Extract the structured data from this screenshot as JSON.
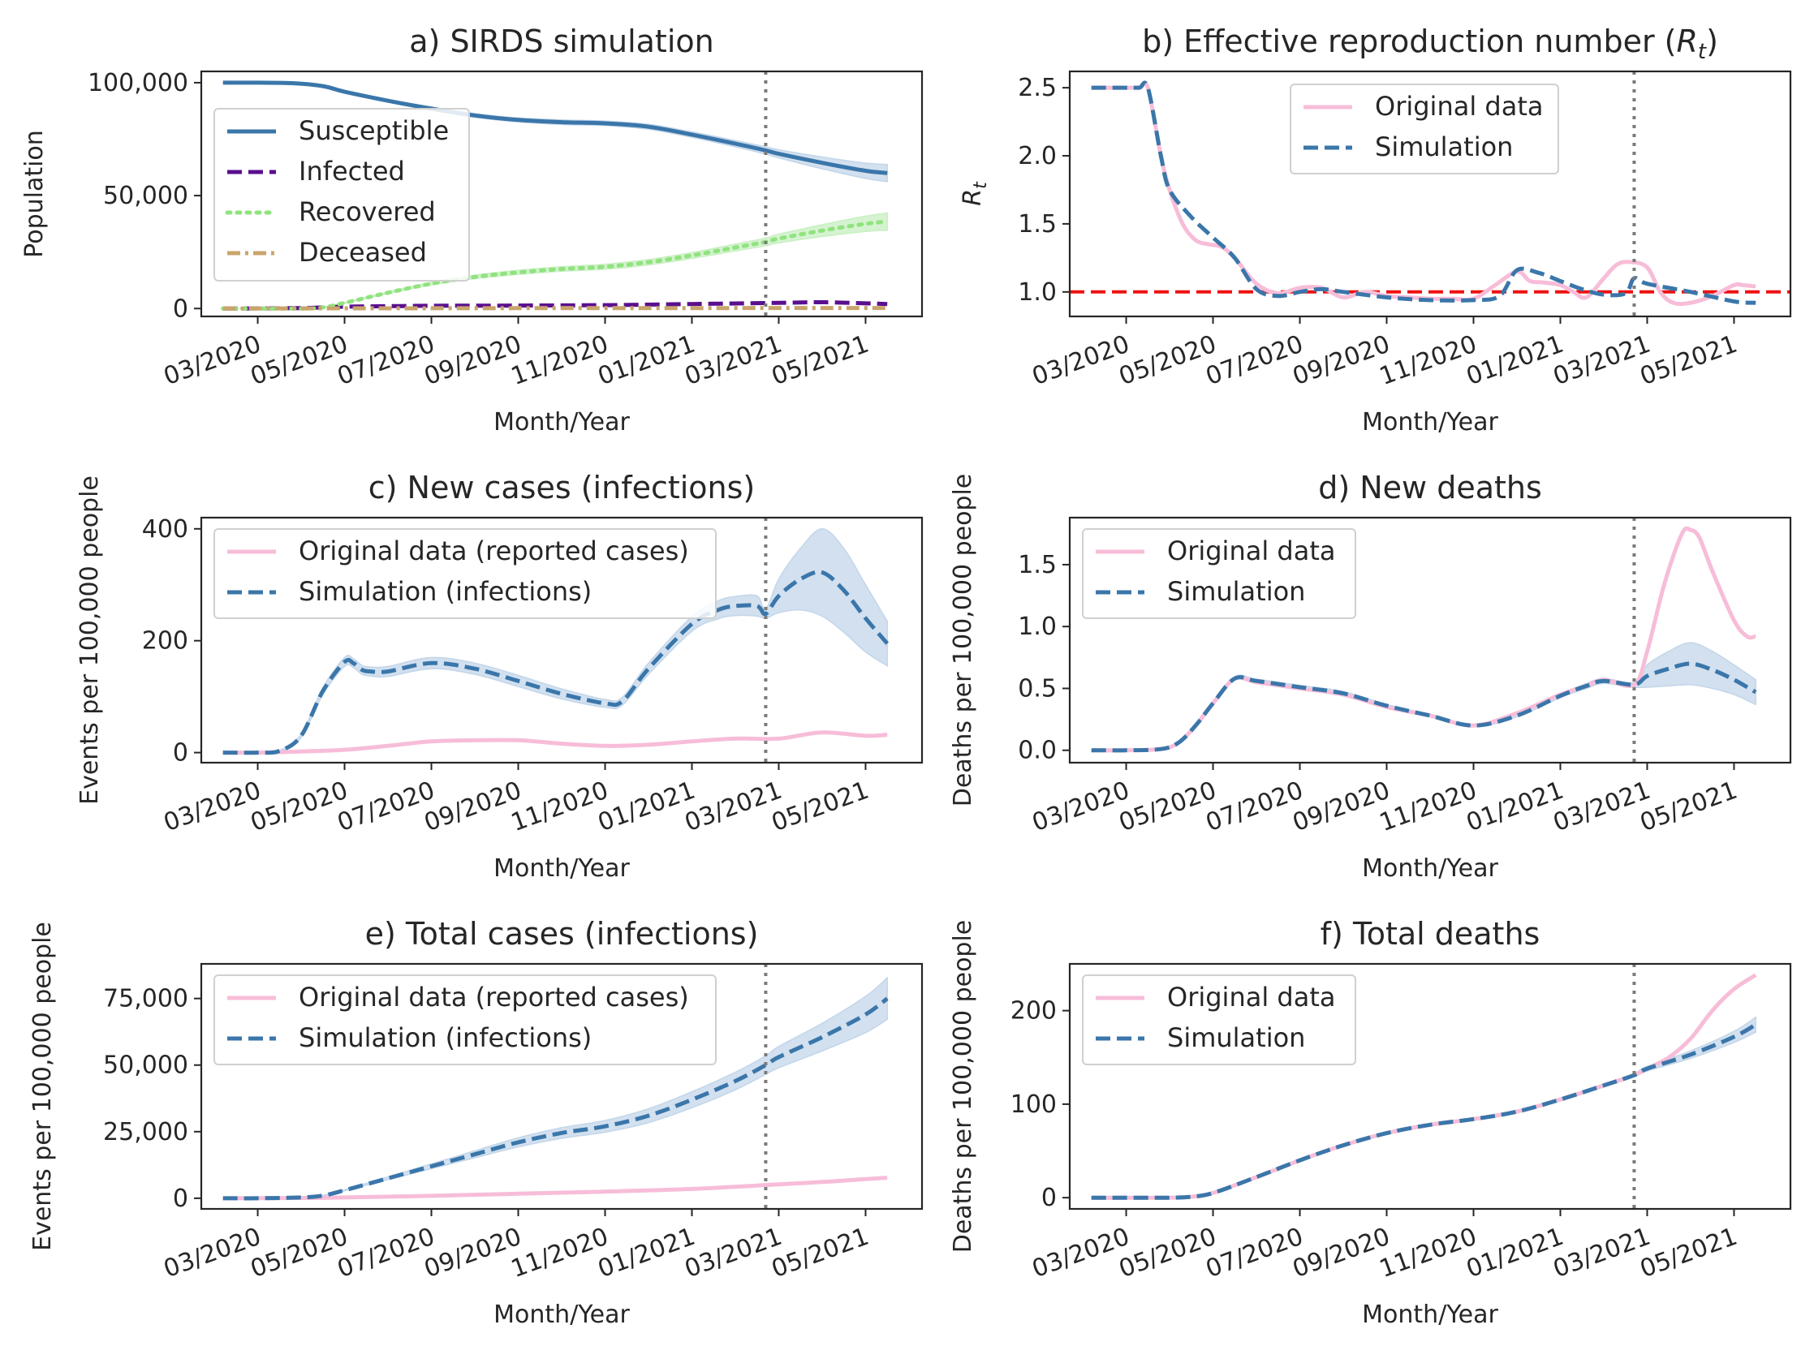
{
  "colors": {
    "susceptible": "#3a76aa",
    "infected": "#5a0f8f",
    "recovered": "#90e37f",
    "deceased": "#c9a56b",
    "original": "#f7bdd8",
    "simulation": "#3a76aa",
    "band": "#c3d6e9",
    "threshold": "#ee1111",
    "vline": "#7a7a7a"
  },
  "chart_data": [
    {
      "id": "a",
      "type": "line",
      "title": "a) SIRDS simulation",
      "xlabel": "Month/Year",
      "ylabel": "Population",
      "x_ticks": [
        "03/2020",
        "05/2020",
        "07/2020",
        "09/2020",
        "11/2020",
        "01/2021",
        "03/2021",
        "05/2021"
      ],
      "x_range": [
        -1.3,
        15.3
      ],
      "ylim": [
        -3500,
        105000
      ],
      "y_ticks": [
        0,
        50000,
        100000
      ],
      "y_tick_labels": [
        "0",
        "50,000",
        "100,000"
      ],
      "vline_x": 11.7,
      "legend": "upper-left",
      "series": [
        {
          "name": "Susceptible",
          "color_key": "susceptible",
          "style": "solid",
          "x": [
            -0.8,
            0,
            0.8,
            1.5,
            2,
            3,
            4,
            5,
            6,
            7,
            8,
            9,
            10,
            11,
            11.7,
            12,
            13,
            14,
            14.5
          ],
          "y": [
            100000,
            100000,
            99800,
            98500,
            96000,
            92000,
            88500,
            85500,
            83500,
            82500,
            82000,
            80500,
            77000,
            73000,
            70000,
            68500,
            64500,
            61000,
            60000
          ],
          "band": [
            0,
            0,
            0,
            300,
            500,
            600,
            700,
            800,
            900,
            1000,
            1000,
            1100,
            1200,
            1400,
            1600,
            1800,
            2600,
            3400,
            3800
          ]
        },
        {
          "name": "Infected",
          "color_key": "infected",
          "style": "dashed",
          "x": [
            -0.8,
            1,
            2,
            4,
            6,
            8,
            10,
            12,
            13,
            14,
            14.5
          ],
          "y": [
            0,
            200,
            800,
            1200,
            1300,
            1500,
            2000,
            2500,
            2800,
            2300,
            2000
          ]
        },
        {
          "name": "Recovered",
          "color_key": "recovered",
          "style": "dotted",
          "x": [
            -0.8,
            1,
            1.5,
            2,
            3,
            4,
            5,
            6,
            7,
            8,
            9,
            10,
            11,
            11.7,
            12,
            13,
            14,
            14.5
          ],
          "y": [
            0,
            0,
            500,
            2500,
            7000,
            11000,
            14000,
            16000,
            17500,
            18500,
            20500,
            23500,
            27000,
            29500,
            31000,
            34500,
            37500,
            38500
          ],
          "band": [
            0,
            0,
            100,
            200,
            400,
            600,
            800,
            900,
            1000,
            1100,
            1200,
            1300,
            1500,
            1700,
            1900,
            2600,
            3400,
            3800
          ]
        },
        {
          "name": "Deceased",
          "color_key": "deceased",
          "style": "dashdot",
          "x": [
            -0.8,
            2,
            6,
            10,
            14,
            14.5
          ],
          "y": [
            0,
            80,
            150,
            200,
            240,
            240
          ]
        }
      ]
    },
    {
      "id": "b",
      "type": "line",
      "title": "b) Effective reproduction number (R_t)",
      "xlabel": "Month/Year",
      "ylabel": "R_t",
      "x_ticks": [
        "03/2020",
        "05/2020",
        "07/2020",
        "09/2020",
        "11/2020",
        "01/2021",
        "03/2021",
        "05/2021"
      ],
      "x_range": [
        -1.3,
        15.3
      ],
      "ylim": [
        0.82,
        2.62
      ],
      "y_ticks": [
        1.0,
        1.5,
        2.0,
        2.5
      ],
      "y_tick_labels": [
        "1.0",
        "1.5",
        "2.0",
        "2.5"
      ],
      "vline_x": 11.7,
      "hline_y": 1.0,
      "legend": "upper-center",
      "series": [
        {
          "name": "Original data",
          "color_key": "original",
          "style": "solid",
          "x": [
            -0.8,
            0,
            0.3,
            0.5,
            0.8,
            1,
            1.3,
            1.6,
            1.9,
            2.2,
            2.5,
            3,
            3.5,
            4,
            4.5,
            5,
            5.5,
            6,
            6.5,
            7,
            7.5,
            8,
            8.5,
            9,
            9.3,
            9.6,
            10,
            10.3,
            10.6,
            11,
            11.3,
            11.6,
            12,
            12.3,
            12.6,
            13,
            13.5,
            14,
            14.2,
            14.5
          ],
          "y": [
            2.5,
            2.5,
            2.5,
            2.5,
            2.0,
            1.75,
            1.5,
            1.38,
            1.35,
            1.33,
            1.25,
            1.06,
            0.99,
            1.03,
            1.03,
            0.96,
            1.0,
            0.97,
            0.96,
            0.95,
            0.95,
            0.95,
            1.05,
            1.15,
            1.08,
            1.07,
            1.05,
            1.0,
            0.96,
            1.1,
            1.2,
            1.22,
            1.18,
            1.0,
            0.92,
            0.92,
            0.97,
            1.05,
            1.05,
            1.04
          ]
        },
        {
          "name": "Simulation",
          "color_key": "simulation",
          "style": "dashed",
          "x": [
            -0.8,
            0,
            0.3,
            0.5,
            0.8,
            1,
            1.5,
            2,
            2.5,
            3,
            3.5,
            4,
            4.5,
            5,
            6,
            7,
            8,
            8.6,
            9,
            9.5,
            10,
            10.5,
            11,
            11.5,
            11.7,
            12,
            13,
            14,
            14.5
          ],
          "y": [
            2.5,
            2.5,
            2.5,
            2.5,
            2.0,
            1.75,
            1.55,
            1.4,
            1.25,
            1.02,
            0.97,
            1.0,
            1.02,
            1.0,
            0.96,
            0.94,
            0.94,
            0.97,
            1.16,
            1.14,
            1.08,
            1.02,
            0.98,
            0.99,
            1.1,
            1.06,
            1.0,
            0.93,
            0.92
          ]
        }
      ]
    },
    {
      "id": "c",
      "type": "line",
      "title": "c) New cases (infections)",
      "xlabel": "Month/Year",
      "ylabel": "Events per 100,000 people",
      "x_ticks": [
        "03/2020",
        "05/2020",
        "07/2020",
        "09/2020",
        "11/2020",
        "01/2021",
        "03/2021",
        "05/2021"
      ],
      "x_range": [
        -1.3,
        15.3
      ],
      "ylim": [
        -18,
        420
      ],
      "y_ticks": [
        0,
        200,
        400
      ],
      "y_tick_labels": [
        "0",
        "200",
        "400"
      ],
      "vline_x": 11.7,
      "legend": "upper-left",
      "series": [
        {
          "name": "Original data (reported cases)",
          "color_key": "original",
          "style": "solid",
          "x": [
            -0.8,
            0,
            1,
            2,
            3,
            4,
            5,
            6,
            7,
            8,
            9,
            10,
            11,
            12,
            13,
            14,
            14.5
          ],
          "y": [
            0,
            0,
            2,
            5,
            12,
            20,
            22,
            22,
            16,
            12,
            14,
            20,
            25,
            25,
            36,
            30,
            32
          ]
        },
        {
          "name": "Simulation (infections)",
          "color_key": "simulation",
          "style": "dashed",
          "x": [
            -0.8,
            0,
            0.5,
            1,
            1.5,
            2,
            2.2,
            2.4,
            2.6,
            3,
            4,
            5,
            6,
            7,
            8,
            8.4,
            9,
            10,
            10.6,
            11,
            11.5,
            11.7,
            12,
            12.5,
            13,
            13.5,
            14,
            14.5
          ],
          "y": [
            0,
            0,
            3,
            30,
            110,
            162,
            160,
            148,
            145,
            145,
            160,
            150,
            128,
            105,
            88,
            92,
            150,
            230,
            255,
            262,
            262,
            248,
            280,
            310,
            322,
            290,
            240,
            195
          ],
          "band": [
            0,
            0,
            1,
            3,
            6,
            8,
            8,
            8,
            8,
            9,
            10,
            10,
            10,
            9,
            7,
            7,
            10,
            13,
            16,
            17,
            18,
            8,
            30,
            55,
            78,
            75,
            60,
            40
          ]
        }
      ]
    },
    {
      "id": "d",
      "type": "line",
      "title": "d) New deaths",
      "xlabel": "Month/Year",
      "ylabel": "Deaths per 100,000 people",
      "x_ticks": [
        "03/2020",
        "05/2020",
        "07/2020",
        "09/2020",
        "11/2020",
        "01/2021",
        "03/2021",
        "05/2021"
      ],
      "x_range": [
        -1.3,
        15.3
      ],
      "ylim": [
        -0.1,
        1.88
      ],
      "y_ticks": [
        0.0,
        0.5,
        1.0,
        1.5
      ],
      "y_tick_labels": [
        "0.0",
        "0.5",
        "1.0",
        "1.5"
      ],
      "vline_x": 11.7,
      "legend": "upper-left",
      "series": [
        {
          "name": "Original data",
          "color_key": "original",
          "style": "solid",
          "x": [
            -0.8,
            0,
            0.8,
            1.2,
            1.6,
            2,
            2.5,
            3,
            4,
            5,
            6,
            7,
            8,
            9,
            10,
            10.6,
            11,
            11.7,
            12,
            12.4,
            12.8,
            13,
            13.2,
            13.5,
            14,
            14.3,
            14.5
          ],
          "y": [
            0,
            0,
            0.01,
            0.06,
            0.2,
            0.38,
            0.58,
            0.55,
            0.5,
            0.45,
            0.35,
            0.28,
            0.2,
            0.3,
            0.45,
            0.52,
            0.57,
            0.53,
            0.8,
            1.35,
            1.75,
            1.78,
            1.72,
            1.45,
            1.05,
            0.92,
            0.92
          ]
        },
        {
          "name": "Simulation",
          "color_key": "simulation",
          "style": "dashed",
          "x": [
            -0.8,
            0,
            0.8,
            1.2,
            1.6,
            2,
            2.5,
            3,
            4,
            5,
            6,
            7,
            8,
            9,
            10,
            10.6,
            11,
            11.7,
            12,
            12.5,
            13,
            13.5,
            14,
            14.5
          ],
          "y": [
            0,
            0,
            0.01,
            0.06,
            0.2,
            0.38,
            0.58,
            0.56,
            0.51,
            0.46,
            0.36,
            0.28,
            0.2,
            0.28,
            0.44,
            0.52,
            0.56,
            0.53,
            0.6,
            0.66,
            0.7,
            0.65,
            0.57,
            0.47
          ],
          "band": [
            0,
            0,
            0,
            0.005,
            0.01,
            0.01,
            0.015,
            0.015,
            0.015,
            0.015,
            0.01,
            0.01,
            0.01,
            0.01,
            0.015,
            0.02,
            0.02,
            0.02,
            0.09,
            0.14,
            0.17,
            0.15,
            0.12,
            0.1
          ]
        }
      ]
    },
    {
      "id": "e",
      "type": "line",
      "title": "e) Total cases (infections)",
      "xlabel": "Month/Year",
      "ylabel": "Events per 100,000 people",
      "x_ticks": [
        "03/2020",
        "05/2020",
        "07/2020",
        "09/2020",
        "11/2020",
        "01/2021",
        "03/2021",
        "05/2021"
      ],
      "x_range": [
        -1.3,
        15.3
      ],
      "ylim": [
        -4000,
        88000
      ],
      "y_ticks": [
        0,
        25000,
        50000,
        75000
      ],
      "y_tick_labels": [
        "0",
        "25,000",
        "50,000",
        "75,000"
      ],
      "vline_x": 11.7,
      "legend": "upper-left",
      "series": [
        {
          "name": "Original data (reported cases)",
          "color_key": "original",
          "style": "solid",
          "x": [
            -0.8,
            1,
            2,
            4,
            6,
            8,
            10,
            12,
            13,
            14,
            14.5
          ],
          "y": [
            0,
            100,
            300,
            900,
            1700,
            2500,
            3500,
            5200,
            6100,
            7200,
            7700
          ]
        },
        {
          "name": "Simulation (infections)",
          "color_key": "simulation",
          "style": "dashed",
          "x": [
            -0.8,
            0,
            1,
            1.5,
            2,
            3,
            4,
            5,
            6,
            7,
            8,
            9,
            10,
            11,
            11.7,
            12,
            13,
            14,
            14.5
          ],
          "y": [
            0,
            0,
            300,
            1000,
            3000,
            7500,
            12000,
            16500,
            21000,
            24500,
            27000,
            31000,
            37000,
            44000,
            50000,
            53000,
            60500,
            69000,
            75000
          ],
          "band": [
            0,
            0,
            0,
            100,
            200,
            500,
            900,
            1300,
            1700,
            2000,
            2200,
            2600,
            3000,
            3300,
            3500,
            4000,
            5200,
            6800,
            7800
          ]
        }
      ]
    },
    {
      "id": "f",
      "type": "line",
      "title": "f) Total deaths",
      "xlabel": "Month/Year",
      "ylabel": "Deaths per 100,000 people",
      "x_ticks": [
        "03/2020",
        "05/2020",
        "07/2020",
        "09/2020",
        "11/2020",
        "01/2021",
        "03/2021",
        "05/2021"
      ],
      "x_range": [
        -1.3,
        15.3
      ],
      "ylim": [
        -12,
        250
      ],
      "y_ticks": [
        0,
        100,
        200
      ],
      "y_tick_labels": [
        "0",
        "100",
        "200"
      ],
      "vline_x": 11.7,
      "legend": "upper-left",
      "series": [
        {
          "name": "Original data",
          "color_key": "original",
          "style": "solid",
          "x": [
            -0.8,
            0,
            1,
            1.5,
            2,
            3,
            4,
            5,
            6,
            7,
            8,
            9,
            10,
            11,
            11.7,
            12,
            12.5,
            13,
            13.5,
            14,
            14.5
          ],
          "y": [
            0,
            0,
            0,
            1,
            5,
            22,
            40,
            56,
            69,
            78,
            84,
            92,
            105,
            120,
            131,
            138,
            150,
            170,
            200,
            223,
            238
          ]
        },
        {
          "name": "Simulation",
          "color_key": "simulation",
          "style": "dashed",
          "x": [
            -0.8,
            0,
            1,
            1.5,
            2,
            3,
            4,
            5,
            6,
            7,
            8,
            9,
            10,
            11,
            11.7,
            12,
            13,
            14,
            14.5
          ],
          "y": [
            0,
            0,
            0,
            1,
            5,
            22,
            40,
            56,
            69,
            78,
            84,
            92,
            105,
            120,
            131,
            138,
            153,
            172,
            185
          ],
          "band": [
            0,
            0,
            0,
            0,
            0.2,
            0.5,
            0.8,
            1,
            1.1,
            1.2,
            1.3,
            1.4,
            1.5,
            1.7,
            1.8,
            2.5,
            4,
            6,
            8
          ]
        }
      ]
    }
  ]
}
